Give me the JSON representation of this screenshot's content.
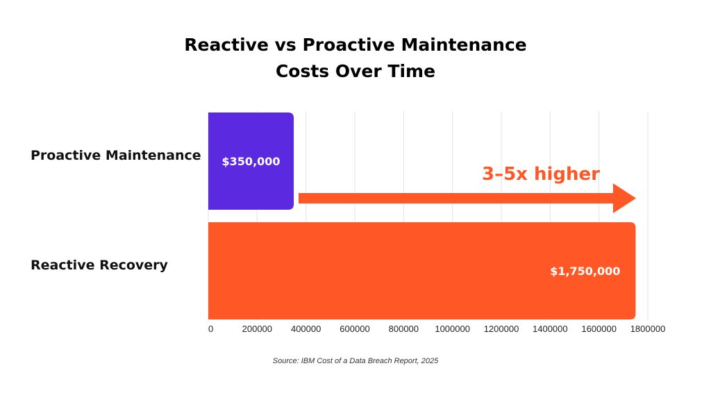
{
  "chart_data": {
    "type": "bar",
    "orientation": "horizontal",
    "title_lines": [
      "Reactive vs Proactive Maintenance",
      "Costs Over Time"
    ],
    "categories": [
      "Proactive Maintenance",
      "Reactive Recovery"
    ],
    "values": [
      350000,
      1750000
    ],
    "data_labels": [
      "$350,000",
      "$1,750,000"
    ],
    "colors": [
      "#5B2AE0",
      "#FF5726"
    ],
    "xlim": [
      0,
      1800000
    ],
    "xticks": [
      0,
      200000,
      400000,
      600000,
      800000,
      1000000,
      1200000,
      1400000,
      1600000,
      1800000
    ],
    "xtick_labels": [
      "0",
      "200000",
      "400000",
      "600000",
      "800000",
      "1000000",
      "1200000",
      "1400000",
      "1600000",
      "1800000"
    ],
    "grid": "vertical",
    "annotation": {
      "text": "3–5x higher",
      "color": "#FF5726",
      "arrow": "right"
    },
    "source": "Source: IBM Cost of a Data Breach Report, 2025"
  }
}
